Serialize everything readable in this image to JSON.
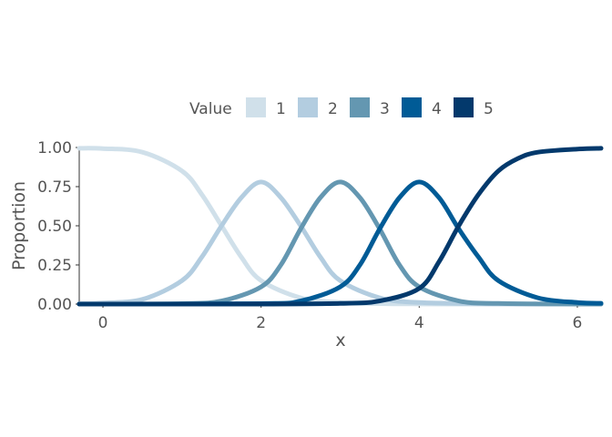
{
  "chart_data": {
    "type": "line",
    "xlabel": "x",
    "ylabel": "Proportion",
    "xlim": [
      -0.3,
      6.3
    ],
    "ylim": [
      0,
      1
    ],
    "x_ticks": [
      0,
      2,
      4,
      6
    ],
    "y_ticks": [
      0,
      0.25,
      0.5,
      0.75,
      1
    ],
    "y_tick_labels": [
      "0.00",
      "0.25",
      "0.50",
      "0.75",
      "1.00"
    ],
    "legend": {
      "title": "Value",
      "position": "top"
    },
    "grid": false,
    "series": [
      {
        "name": "1",
        "color": "#d0e0ea",
        "x": [
          -0.3,
          0,
          0.5,
          1,
          1.25,
          1.5,
          1.75,
          2,
          2.5,
          3,
          3.5,
          4,
          5,
          6,
          6.3
        ],
        "y": [
          0.995,
          0.993,
          0.97,
          0.85,
          0.7,
          0.5,
          0.3,
          0.15,
          0.04,
          0.01,
          0.003,
          0.001,
          0,
          0,
          0
        ]
      },
      {
        "name": "2",
        "color": "#b3cde0",
        "x": [
          -0.3,
          0,
          0.5,
          1,
          1.25,
          1.5,
          1.75,
          2,
          2.25,
          2.5,
          2.75,
          3,
          3.5,
          4,
          5,
          6,
          6.3
        ],
        "y": [
          0.003,
          0.007,
          0.03,
          0.15,
          0.3,
          0.5,
          0.68,
          0.78,
          0.68,
          0.5,
          0.3,
          0.15,
          0.04,
          0.01,
          0.001,
          0,
          0
        ]
      },
      {
        "name": "3",
        "color": "#6497b1",
        "x": [
          -0.3,
          0,
          1,
          1.5,
          2,
          2.25,
          2.5,
          2.75,
          3,
          3.25,
          3.5,
          3.75,
          4,
          4.5,
          5,
          6,
          6.3
        ],
        "y": [
          0,
          0,
          0.003,
          0.02,
          0.11,
          0.25,
          0.48,
          0.68,
          0.78,
          0.68,
          0.48,
          0.25,
          0.11,
          0.02,
          0.004,
          0,
          0
        ]
      },
      {
        "name": "4",
        "color": "#005b96",
        "x": [
          -0.3,
          0,
          2,
          2.5,
          3,
          3.25,
          3.5,
          3.75,
          4,
          4.25,
          4.5,
          4.75,
          5,
          5.5,
          6,
          6.3
        ],
        "y": [
          0,
          0,
          0.003,
          0.02,
          0.11,
          0.25,
          0.48,
          0.68,
          0.78,
          0.68,
          0.48,
          0.3,
          0.15,
          0.04,
          0.01,
          0.005
        ]
      },
      {
        "name": "5",
        "color": "#03396c",
        "x": [
          -0.3,
          0,
          2,
          3,
          3.5,
          4,
          4.25,
          4.5,
          4.75,
          5,
          5.25,
          5.5,
          6,
          6.3
        ],
        "y": [
          0,
          0,
          0,
          0.004,
          0.02,
          0.1,
          0.27,
          0.5,
          0.7,
          0.85,
          0.93,
          0.97,
          0.99,
          0.995
        ]
      }
    ]
  }
}
